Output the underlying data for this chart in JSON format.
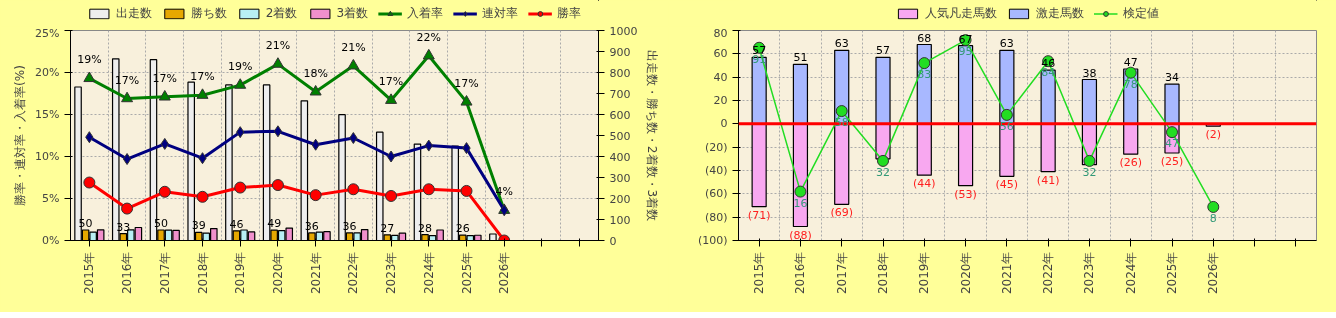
{
  "chart_data": [
    {
      "type": "bar",
      "ylabel": "勝率・連対率・入着率(%)",
      "y2label": "出走数・勝ち数・2着数・3着数",
      "categories": [
        "2015年",
        "2016年",
        "2017年",
        "2018年",
        "2019年",
        "2020年",
        "2021年",
        "2022年",
        "2023年",
        "2024年",
        "2025年",
        "2026年",
        null,
        null
      ],
      "ylim": [
        0,
        25
      ],
      "yticks": [
        {
          "value": 0,
          "label": "0%"
        },
        {
          "value": 5,
          "label": "5%"
        },
        {
          "value": 10,
          "label": "10%"
        },
        {
          "value": 15,
          "label": "15%"
        },
        {
          "value": 20,
          "label": "20%"
        },
        {
          "value": 25,
          "label": "25%"
        }
      ],
      "y2lim": [
        0,
        1000
      ],
      "y2ticks": [
        0,
        100,
        200,
        300,
        400,
        500,
        600,
        700,
        800,
        900,
        1000
      ],
      "grid": true,
      "legend": "top",
      "series": [
        {
          "name": "出走数",
          "axis": "y2",
          "color": "#eeeeee",
          "values": [
            731,
            865,
            861,
            754,
            741,
            741,
            665,
            599,
            516,
            459,
            450,
            31,
            null,
            null
          ]
        },
        {
          "name": "勝ち数",
          "axis": "y2",
          "color": "#e6a800",
          "values": [
            50,
            33,
            50,
            39,
            46,
            49,
            36,
            36,
            27,
            28,
            26,
            null,
            null,
            null
          ],
          "value_labels": [
            "50",
            "33",
            "50",
            "39",
            "46",
            "49",
            "36",
            "36",
            "27",
            "28",
            "26",
            null,
            null,
            null
          ]
        },
        {
          "name": "2着数",
          "axis": "y2",
          "color": "#b8f0f4",
          "values": [
            40,
            51,
            49,
            35,
            50,
            47,
            40,
            36,
            24,
            23,
            23,
            null,
            null,
            null
          ]
        },
        {
          "name": "3着数",
          "axis": "y2",
          "color": "#f090cc",
          "values": [
            51,
            62,
            48,
            57,
            41,
            59,
            42,
            52,
            35,
            50,
            25,
            null,
            null,
            null
          ]
        },
        {
          "name": "入着率",
          "type": "line",
          "color": "#008000",
          "marker": "triangle",
          "values": [
            19.3,
            16.9,
            17.1,
            17.3,
            18.5,
            21.0,
            17.7,
            20.8,
            16.7,
            22.0,
            16.5,
            3.6,
            null,
            null
          ],
          "value_labels": [
            "19%",
            "17%",
            "17%",
            "17%",
            "19%",
            "21%",
            "18%",
            "21%",
            "17%",
            "22%",
            "17%",
            "4%",
            null,
            null
          ]
        },
        {
          "name": "連対率",
          "type": "line",
          "color": "#000080",
          "marker": "diamond",
          "values": [
            12.3,
            9.7,
            11.5,
            9.8,
            12.9,
            13.0,
            11.4,
            12.2,
            10.0,
            11.3,
            11.0,
            3.6,
            null,
            null
          ]
        },
        {
          "name": "勝率",
          "type": "line",
          "color": "#ff0000",
          "marker": "circle",
          "values": [
            6.9,
            3.8,
            5.8,
            5.2,
            6.3,
            6.6,
            5.4,
            6.1,
            5.3,
            6.1,
            5.9,
            0,
            null,
            null
          ]
        }
      ]
    },
    {
      "type": "bar",
      "stacked": true,
      "categories": [
        "2015年",
        "2016年",
        "2017年",
        "2018年",
        "2019年",
        "2020年",
        "2021年",
        "2022年",
        "2023年",
        "2024年",
        "2025年",
        "2026年",
        null,
        null
      ],
      "ylim": [
        -100,
        80
      ],
      "yticks": [
        {
          "value": -100,
          "label": "(100)"
        },
        {
          "value": -80,
          "label": "(80)"
        },
        {
          "value": -60,
          "label": "(60)"
        },
        {
          "value": -40,
          "label": "(40)"
        },
        {
          "value": -20,
          "label": "(20)"
        },
        0,
        20,
        40,
        60,
        80
      ],
      "y2lim": [
        -9.5,
        100
      ],
      "grid": true,
      "legend": "top",
      "ref_lines": [
        {
          "axis": "y",
          "value": 0,
          "color": "#ff0000"
        }
      ],
      "series": [
        {
          "name": "人気凡走馬数",
          "color": "#f8a8f0",
          "values": [
            -71,
            -88,
            -69,
            -30,
            -44,
            -53,
            -45,
            -41,
            -35,
            -26,
            -25,
            -2,
            null,
            null
          ],
          "value_labels": [
            "(71)",
            "(88)",
            "(69)",
            null,
            "(44)",
            "(53)",
            "(45)",
            "(41)",
            null,
            "(26)",
            "(25)",
            "(2)",
            null,
            null
          ]
        },
        {
          "name": "激走馬数",
          "color": "#a8b8ff",
          "values": [
            57,
            51,
            63,
            57,
            68,
            67,
            63,
            46,
            38,
            47,
            34,
            null,
            null,
            null
          ],
          "value_labels": [
            "57",
            "51",
            "63",
            "57",
            "68",
            "67",
            "63",
            "46",
            "38",
            "47",
            "34",
            null,
            null,
            null
          ]
        },
        {
          "name": "検定値",
          "type": "line",
          "axis": "y2",
          "color": "#22dd22",
          "marker": "circle",
          "values": [
            91,
            16,
            58,
            32,
            83,
            95,
            56,
            84,
            32,
            78,
            47,
            8,
            null,
            null
          ],
          "value_labels": [
            "91",
            "16",
            "58",
            "32",
            "83",
            "95",
            "56",
            "84",
            "32",
            "78",
            "47",
            "8",
            null,
            null
          ]
        }
      ]
    }
  ]
}
